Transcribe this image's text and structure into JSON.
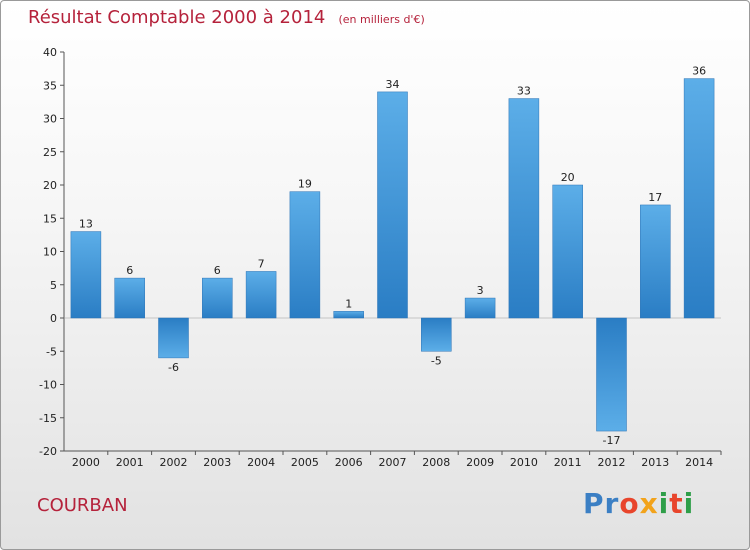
{
  "title": "Résultat Comptable 2000 à 2014",
  "subtitle": "(en milliers d'€)",
  "commune": "COURBAN",
  "logo": {
    "letters": [
      "P",
      "r",
      "o",
      "x",
      "i",
      "t",
      "i"
    ],
    "colors": [
      "#3b7fc4",
      "#3b7fc4",
      "#e8452c",
      "#f2a31b",
      "#2e9e48",
      "#e8452c",
      "#2e9e48"
    ]
  },
  "chart_data": {
    "type": "bar",
    "title": "Résultat Comptable 2000 à 2014",
    "xlabel": "",
    "ylabel": "",
    "categories": [
      "2000",
      "2001",
      "2002",
      "2003",
      "2004",
      "2005",
      "2006",
      "2007",
      "2008",
      "2009",
      "2010",
      "2011",
      "2012",
      "2013",
      "2014"
    ],
    "values": [
      13,
      6,
      -6,
      6,
      7,
      19,
      1,
      34,
      -5,
      3,
      33,
      20,
      -17,
      17,
      36
    ],
    "ylim": [
      -20,
      40
    ],
    "yticks": [
      40,
      35,
      30,
      25,
      20,
      15,
      10,
      5,
      0,
      -5,
      -10,
      -15,
      -20
    ],
    "grid": false,
    "bar_color": "#3a93d8"
  }
}
